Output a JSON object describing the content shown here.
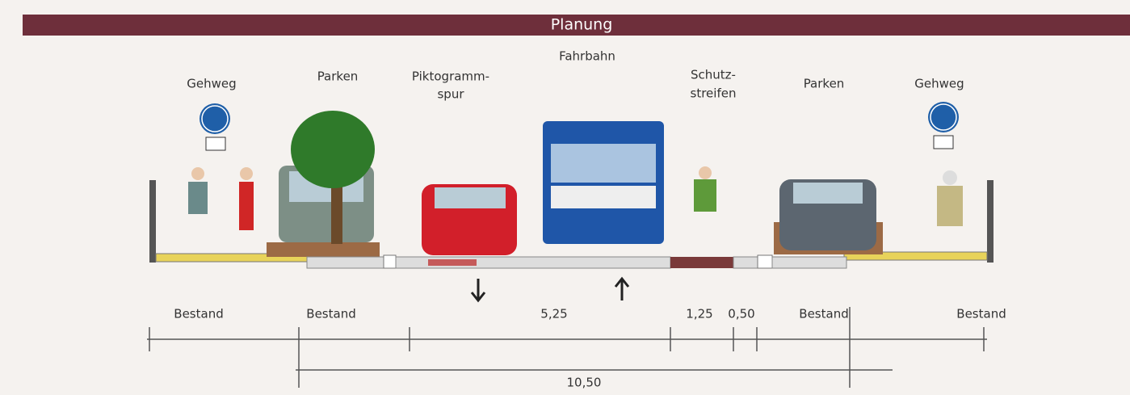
{
  "banner": {
    "title": "Planung"
  },
  "zones": [
    {
      "lines": [
        "Gehweg"
      ]
    },
    {
      "lines": [
        "Parken"
      ]
    },
    {
      "lines": [
        "Piktogramm-",
        "spur"
      ]
    },
    {
      "lines": [
        "Fahrbahn"
      ]
    },
    {
      "lines": [
        "Schutz-",
        "streifen"
      ]
    },
    {
      "lines": [
        "Parken"
      ]
    },
    {
      "lines": [
        "Gehweg"
      ]
    }
  ],
  "dimensions": {
    "labels": [
      "Bestand",
      "Bestand",
      "5,25",
      "1,25",
      "0,50",
      "Bestand",
      "Bestand"
    ],
    "total": "10,50"
  }
}
